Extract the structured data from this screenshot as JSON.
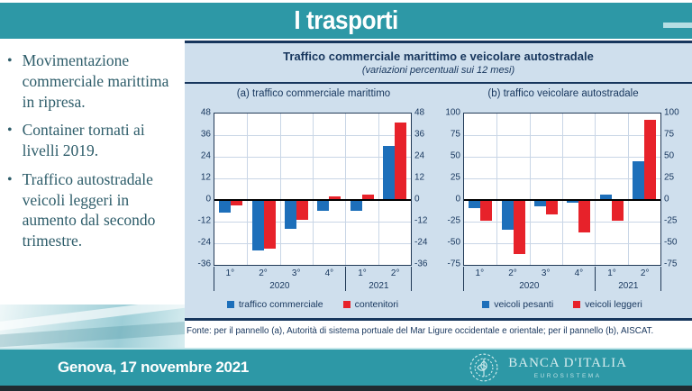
{
  "slide": {
    "title": "I trasporti",
    "footer_location": "Genova, 17 novembre 2021",
    "logo": {
      "name": "BANCA D'ITALIA",
      "subtitle": "EUROSISTEMA"
    }
  },
  "bullets": [
    "Movimentazione commerciale marittima in ripresa.",
    "Container tornati ai livelli 2019.",
    "Traffico autostradale veicoli leggeri in aumento dal secondo trimestre."
  ],
  "figure": {
    "title": "Traffico commerciale marittimo e veicolare autostradale",
    "subtitle": "(variazioni percentuali sui 12 mesi)",
    "source_note": "Fonte: per il pannello (a), Autorità di sistema portuale del Mar Ligure occidentale e orientale; per il pannello (b), AISCAT."
  },
  "colors": {
    "teal": "#2d98a6",
    "teal_light_edge": "#c4e6ea",
    "navy": "#17365d",
    "panel_bg": "#cfdfed",
    "bar_blue": "#1d6fba",
    "bar_red": "#e7222a",
    "bullet_text": "#2e5d6a",
    "strip_dark": "#202b31",
    "logo_text": "#d5ecee"
  },
  "chart_data": [
    {
      "type": "bar",
      "title": "(a) traffico commerciale marittimo",
      "categories": [
        "1°",
        "2°",
        "3°",
        "4°",
        "1°",
        "2°"
      ],
      "year_groups": [
        {
          "label": "2020",
          "span": 4
        },
        {
          "label": "2021",
          "span": 2
        }
      ],
      "series": [
        {
          "name": "traffico commerciale",
          "color": "#1d6fba",
          "values": [
            -7,
            -28,
            -16,
            -6,
            -6,
            30
          ]
        },
        {
          "name": "contenitori",
          "color": "#e7222a",
          "values": [
            -3,
            -27,
            -11,
            2,
            3,
            43
          ]
        }
      ],
      "ylim": [
        -36,
        48
      ],
      "yticks": [
        48,
        36,
        24,
        12,
        0,
        -12,
        -24,
        -36
      ],
      "grid": true,
      "legend_position": "bottom"
    },
    {
      "type": "bar",
      "title": "(b) traffico veicolare autostradale",
      "categories": [
        "1°",
        "2°",
        "3°",
        "4°",
        "1°",
        "2°"
      ],
      "year_groups": [
        {
          "label": "2020",
          "span": 4
        },
        {
          "label": "2021",
          "span": 2
        }
      ],
      "series": [
        {
          "name": "veicoli pesanti",
          "color": "#1d6fba",
          "values": [
            -9,
            -34,
            -7,
            -3,
            6,
            45
          ]
        },
        {
          "name": "veicoli leggeri",
          "color": "#e7222a",
          "values": [
            -24,
            -63,
            -17,
            -38,
            -24,
            93
          ]
        }
      ],
      "ylim": [
        -75,
        100
      ],
      "yticks": [
        100,
        75,
        50,
        25,
        0,
        -25,
        -50,
        -75
      ],
      "grid": true,
      "legend_position": "bottom"
    }
  ]
}
